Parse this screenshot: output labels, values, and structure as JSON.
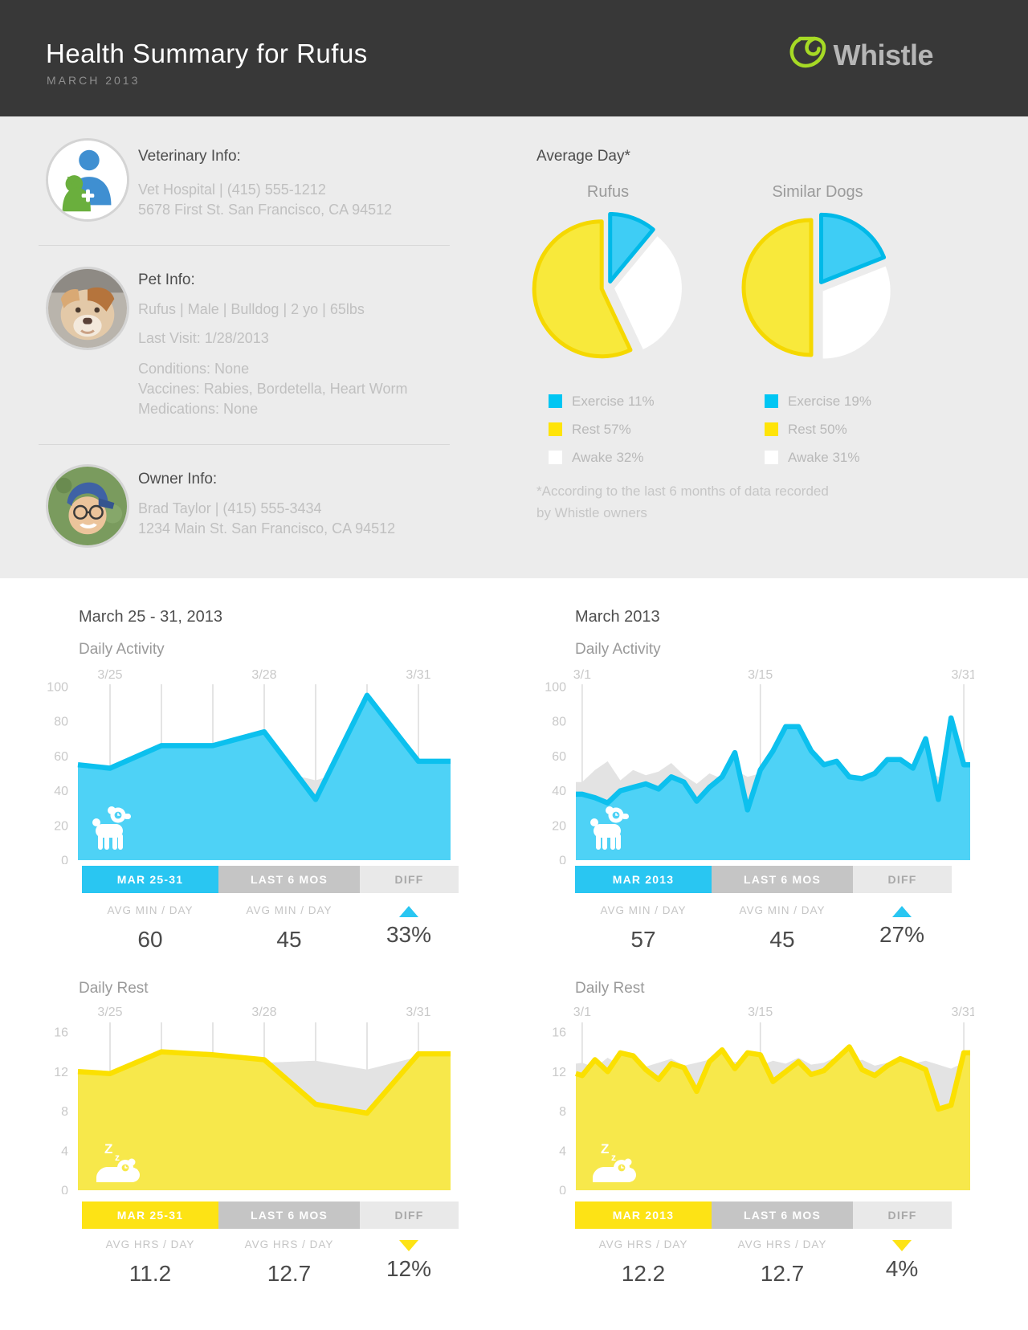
{
  "header": {
    "title": "Health Summary for Rufus",
    "subtitle": "MARCH 2013",
    "brand": "Whistle"
  },
  "info": {
    "vet": {
      "heading": "Veterinary Info:",
      "line1": "Vet Hospital  |  (415) 555-1212",
      "line2": "5678 First St. San Francisco, CA 94512"
    },
    "pet": {
      "heading": "Pet Info:",
      "line1": "Rufus  |  Male  |  Bulldog  |  2 yo  |  65lbs",
      "last_visit": "Last Visit: 1/28/2013",
      "conditions": "Conditions: None",
      "vaccines": "Vaccines: Rabies, Bordetella, Heart Worm",
      "medications": "Medications: None"
    },
    "owner": {
      "heading": "Owner Info:",
      "line1": "Brad Taylor  |  (415) 555-3434",
      "line2": "1234 Main St. San Francisco, CA 94512"
    }
  },
  "average_day": {
    "heading": "Average Day*",
    "footnote_line1": "*According to the last 6 months of data recorded",
    "footnote_line2": "by Whistle owners"
  },
  "colors": {
    "cyan_solid": "#29c6f2",
    "cyan_fill": "#4ed2f6",
    "cyan_stroke": "#0cc0ee",
    "yellow_solid": "#fde315",
    "yellow_fill": "#f7e84b",
    "yellow_stroke": "#fbe000",
    "gray_fill": "#e3e3e3",
    "grid": "#dcdcdc",
    "axis_text": "#c9c9c9"
  },
  "chart_data": [
    {
      "type": "pie",
      "title": "Rufus",
      "slices": [
        {
          "label": "Exercise",
          "value": 11,
          "fill": "#3ecdf5",
          "stroke": "#00b9e8",
          "legend_color": "#00c6f3"
        },
        {
          "label": "Awake",
          "value": 32,
          "fill": "#ffffff",
          "stroke": "",
          "legend_color": "#ffffff"
        },
        {
          "label": "Rest",
          "value": 57,
          "fill": "#f8e93b",
          "stroke": "#f5d800",
          "legend_color": "#ffe408"
        }
      ],
      "legend_order": [
        0,
        2,
        1
      ]
    },
    {
      "type": "pie",
      "title": "Similar Dogs",
      "slices": [
        {
          "label": "Exercise",
          "value": 19,
          "fill": "#3ecdf5",
          "stroke": "#00b9e8",
          "legend_color": "#00c6f3"
        },
        {
          "label": "Awake",
          "value": 31,
          "fill": "#ffffff",
          "stroke": "",
          "legend_color": "#ffffff"
        },
        {
          "label": "Rest",
          "value": 50,
          "fill": "#f8e93b",
          "stroke": "#f5d800",
          "legend_color": "#ffe408"
        }
      ],
      "legend_order": [
        0,
        2,
        1
      ]
    },
    {
      "type": "area",
      "title": "March 25 - 31, 2013",
      "subtitle": "Daily Activity",
      "ylim": [
        0,
        100
      ],
      "yticks": [
        0,
        20,
        40,
        60,
        80,
        100
      ],
      "x_tick_labels": [
        {
          "label": "3/25",
          "day": 0
        },
        {
          "label": "3/28",
          "day": 3
        },
        {
          "label": "3/31",
          "day": 6
        }
      ],
      "gridline_days": [
        0,
        1,
        2,
        3,
        4,
        5,
        6
      ],
      "series": [
        {
          "name": "Last 6 Months",
          "kind": "gray",
          "values": [
            46,
            56,
            50,
            53,
            46,
            55,
            48
          ],
          "edge": [
            47,
            48
          ]
        },
        {
          "name": "Mar 25-31",
          "kind": "main",
          "values": [
            53,
            66,
            66,
            74,
            35,
            95,
            57
          ],
          "edge": [
            55,
            57
          ]
        }
      ],
      "stats": {
        "tab_current": "MAR 25-31",
        "tab_baseline": "LAST 6 MOS",
        "tab_diff": "DIFF",
        "metric_label": "AVG MIN / DAY",
        "current": "60",
        "baseline": "45",
        "diff": "33%",
        "diff_direction": "up"
      }
    },
    {
      "type": "area",
      "title": "March 2013",
      "subtitle": "Daily Activity",
      "ylim": [
        0,
        100
      ],
      "yticks": [
        0,
        20,
        40,
        60,
        80,
        100
      ],
      "x_tick_labels": [
        {
          "label": "3/1",
          "day": 0
        },
        {
          "label": "3/15",
          "day": 14
        },
        {
          "label": "3/31",
          "day": 30
        }
      ],
      "gridline_days": [
        0,
        14,
        30
      ],
      "series": [
        {
          "name": "Last 6 Months",
          "kind": "gray",
          "values": [
            45,
            52,
            57,
            46,
            52,
            49,
            51,
            56,
            49,
            44,
            50,
            47,
            52,
            48,
            50,
            46,
            52,
            50,
            48,
            52,
            54,
            50,
            47,
            46,
            48,
            50,
            49,
            52,
            48,
            50,
            47
          ],
          "edge": [
            45,
            47
          ]
        },
        {
          "name": "Mar 2013",
          "kind": "main",
          "values": [
            38,
            36,
            33,
            40,
            42,
            44,
            41,
            48,
            45,
            34,
            42,
            48,
            62,
            29,
            52,
            63,
            77,
            77,
            63,
            55,
            57,
            48,
            47,
            50,
            58,
            58,
            53,
            70,
            35,
            82,
            55
          ],
          "edge": [
            38,
            55
          ]
        }
      ],
      "stats": {
        "tab_current": "MAR 2013",
        "tab_baseline": "LAST 6 MOS",
        "tab_diff": "DIFF",
        "metric_label": "AVG MIN / DAY",
        "current": "57",
        "baseline": "45",
        "diff": "27%",
        "diff_direction": "up"
      }
    },
    {
      "type": "area",
      "title": "",
      "subtitle": "Daily Rest",
      "ylim": [
        0,
        16
      ],
      "yticks": [
        0,
        4,
        8,
        12,
        16
      ],
      "x_tick_labels": [
        {
          "label": "3/25",
          "day": 0
        },
        {
          "label": "3/28",
          "day": 3
        },
        {
          "label": "3/31",
          "day": 6
        }
      ],
      "gridline_days": [
        0,
        1,
        2,
        3,
        4,
        5,
        6
      ],
      "series": [
        {
          "name": "Last 6 Months",
          "kind": "gray",
          "values": [
            11.4,
            13.6,
            11.9,
            12.9,
            13.1,
            12.2,
            13.5
          ],
          "edge": [
            11.3,
            13.5
          ]
        },
        {
          "name": "Mar 25-31",
          "kind": "main",
          "values": [
            11.8,
            14,
            13.7,
            13.2,
            8.7,
            7.8,
            13.8
          ],
          "edge": [
            12,
            13.8
          ]
        }
      ],
      "stats": {
        "tab_current": "MAR 25-31",
        "tab_baseline": "LAST 6 MOS",
        "tab_diff": "DIFF",
        "metric_label": "AVG HRS / DAY",
        "current": "11.2",
        "baseline": "12.7",
        "diff": "12%",
        "diff_direction": "down"
      }
    },
    {
      "type": "area",
      "title": "",
      "subtitle": "Daily Rest",
      "ylim": [
        0,
        16
      ],
      "yticks": [
        0,
        4,
        8,
        12,
        16
      ],
      "x_tick_labels": [
        {
          "label": "3/1",
          "day": 0
        },
        {
          "label": "3/15",
          "day": 14
        },
        {
          "label": "3/31",
          "day": 30
        }
      ],
      "gridline_days": [
        0,
        14,
        30
      ],
      "series": [
        {
          "name": "Last 6 Months",
          "kind": "gray",
          "values": [
            12.9,
            12.4,
            13.4,
            12.6,
            13.0,
            12.5,
            12.9,
            13.3,
            12.6,
            12.9,
            13.2,
            12.5,
            13.0,
            12.8,
            12.6,
            13.1,
            12.8,
            13.4,
            12.7,
            12.9,
            13.5,
            12.8,
            13.2,
            12.6,
            12.9,
            12.4,
            12.8,
            13.1,
            12.7,
            12.3,
            12.9
          ],
          "edge": [
            12.8,
            12.9
          ]
        },
        {
          "name": "Mar 2013",
          "kind": "main",
          "values": [
            11.6,
            13.2,
            12.0,
            13.9,
            13.6,
            12.2,
            11.2,
            12.8,
            12.4,
            10.0,
            13.0,
            14.2,
            12.3,
            13.9,
            13.7,
            11.0,
            12.0,
            13.0,
            11.7,
            12.1,
            13.3,
            14.5,
            12.2,
            11.6,
            12.6,
            13.3,
            12.8,
            12.2,
            8.2,
            8.6,
            13.9
          ],
          "edge": [
            11.8,
            13.9
          ]
        }
      ],
      "stats": {
        "tab_current": "MAR 2013",
        "tab_baseline": "LAST 6 MOS",
        "tab_diff": "DIFF",
        "metric_label": "AVG HRS / DAY",
        "current": "12.2",
        "baseline": "12.7",
        "diff": "4%",
        "diff_direction": "down"
      }
    }
  ]
}
